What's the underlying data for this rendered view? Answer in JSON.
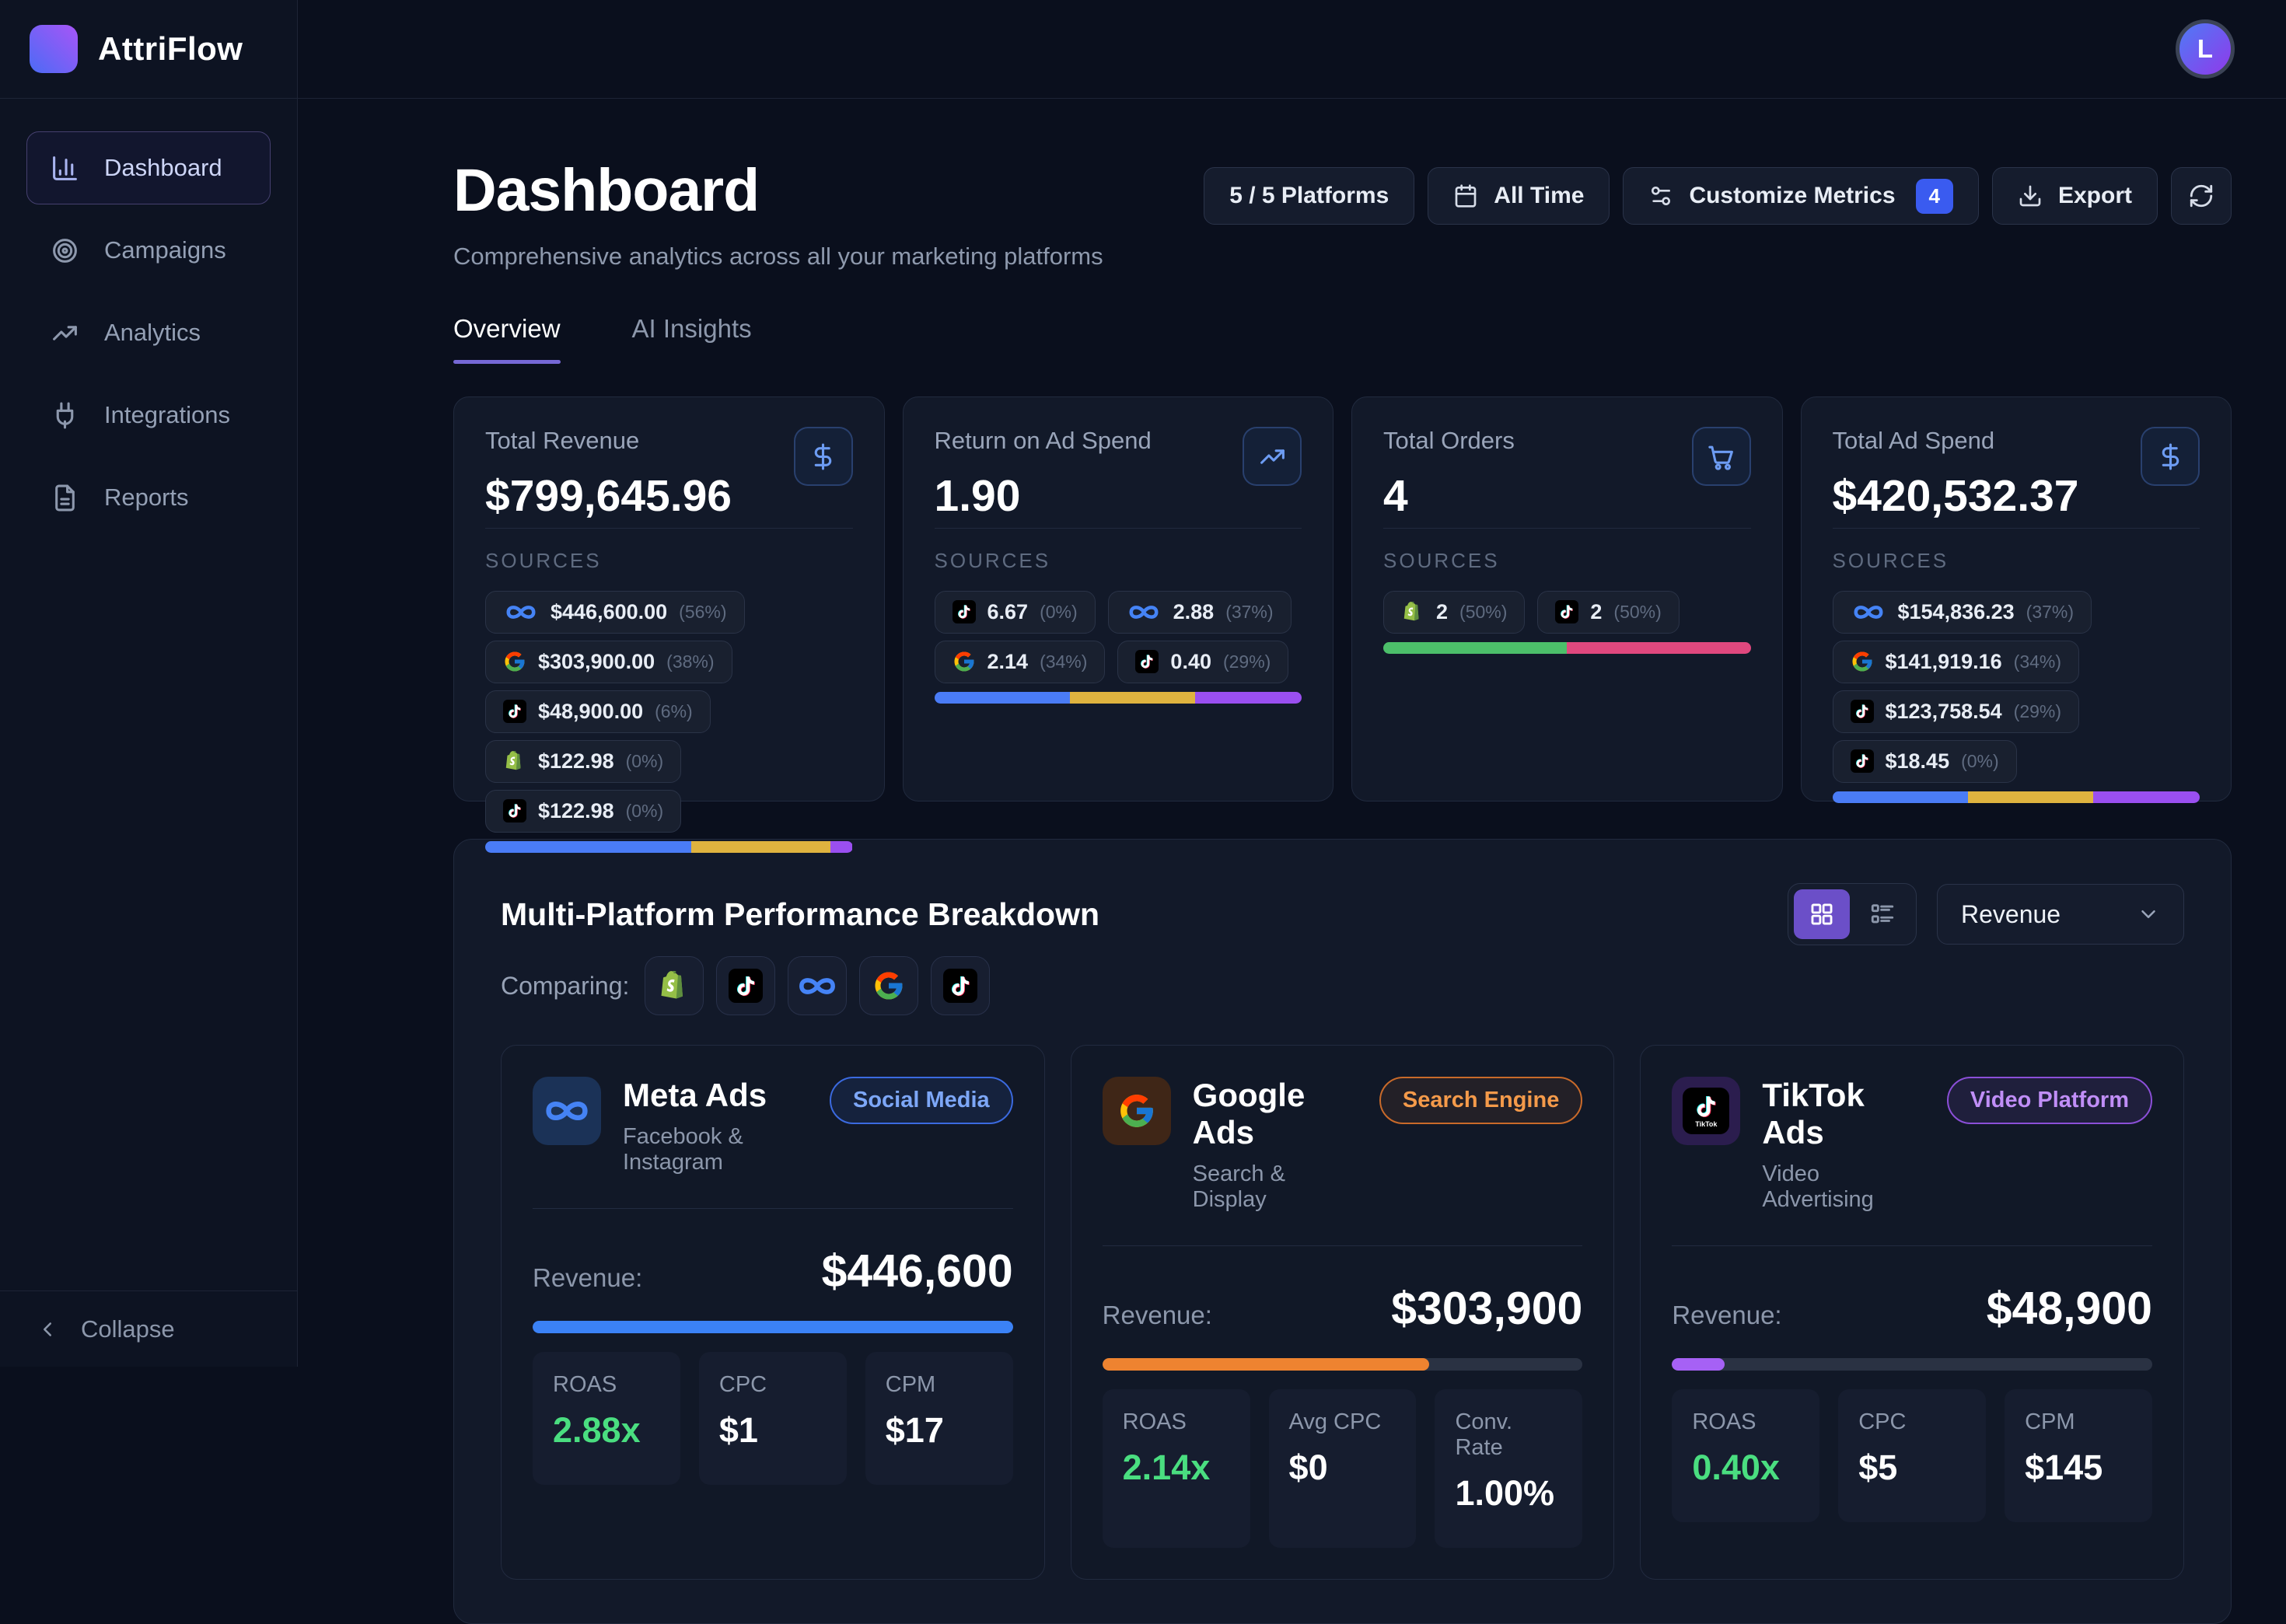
{
  "brand": {
    "name": "AttriFlow",
    "avatar_initial": "L"
  },
  "labels": {
    "sources": "SOURCES",
    "revenue": "Revenue:"
  },
  "sidebar": {
    "items": [
      {
        "label": "Dashboard",
        "icon": "bar-chart-icon",
        "active": true
      },
      {
        "label": "Campaigns",
        "icon": "target-icon",
        "active": false
      },
      {
        "label": "Analytics",
        "icon": "trending-up-icon",
        "active": false
      },
      {
        "label": "Integrations",
        "icon": "plug-icon",
        "active": false
      },
      {
        "label": "Reports",
        "icon": "file-text-icon",
        "active": false
      }
    ],
    "collapse_label": "Collapse"
  },
  "header": {
    "title": "Dashboard",
    "subtitle": "Comprehensive analytics across all your marketing platforms",
    "toolbar": {
      "platforms_label": "5 / 5 Platforms",
      "time_label": "All Time",
      "customize_label": "Customize Metrics",
      "customize_count": "4",
      "export_label": "Export"
    },
    "tabs": [
      {
        "label": "Overview",
        "active": true
      },
      {
        "label": "AI Insights",
        "active": false
      }
    ]
  },
  "stat_cards": [
    {
      "title": "Total Revenue",
      "value": "$799,645.96",
      "icon": "dollar-icon",
      "sources": [
        {
          "platform": "meta",
          "value": "$446,600.00",
          "pct": "(56%)"
        },
        {
          "platform": "google",
          "value": "$303,900.00",
          "pct": "(38%)"
        },
        {
          "platform": "tiktok",
          "value": "$48,900.00",
          "pct": "(6%)"
        },
        {
          "platform": "shopify",
          "value": "$122.98",
          "pct": "(0%)"
        },
        {
          "platform": "tiktok",
          "value": "$122.98",
          "pct": "(0%)"
        }
      ],
      "bar": [
        {
          "color": "#4a7cf6",
          "pct": 56
        },
        {
          "color": "#dfb33f",
          "pct": 38
        },
        {
          "color": "#9a4ff0",
          "pct": 6
        }
      ]
    },
    {
      "title": "Return on Ad Spend",
      "value": "1.90",
      "icon": "trending-up-icon",
      "sources": [
        {
          "platform": "tiktok",
          "value": "6.67",
          "pct": "(0%)"
        },
        {
          "platform": "meta",
          "value": "2.88",
          "pct": "(37%)"
        },
        {
          "platform": "google",
          "value": "2.14",
          "pct": "(34%)"
        },
        {
          "platform": "tiktok",
          "value": "0.40",
          "pct": "(29%)"
        }
      ],
      "bar": [
        {
          "color": "#4a7cf6",
          "pct": 37
        },
        {
          "color": "#dfb33f",
          "pct": 34
        },
        {
          "color": "#9a4ff0",
          "pct": 29
        }
      ]
    },
    {
      "title": "Total Orders",
      "value": "4",
      "icon": "cart-icon",
      "sources": [
        {
          "platform": "shopify",
          "value": "2",
          "pct": "(50%)"
        },
        {
          "platform": "tiktok",
          "value": "2",
          "pct": "(50%)"
        }
      ],
      "bar": [
        {
          "color": "#4cbf6a",
          "pct": 50
        },
        {
          "color": "#e0487e",
          "pct": 50
        }
      ]
    },
    {
      "title": "Total Ad Spend",
      "value": "$420,532.37",
      "icon": "dollar-icon",
      "sources": [
        {
          "platform": "meta",
          "value": "$154,836.23",
          "pct": "(37%)"
        },
        {
          "platform": "google",
          "value": "$141,919.16",
          "pct": "(34%)"
        },
        {
          "platform": "tiktok",
          "value": "$123,758.54",
          "pct": "(29%)"
        },
        {
          "platform": "tiktok",
          "value": "$18.45",
          "pct": "(0%)"
        }
      ],
      "bar": [
        {
          "color": "#4a7cf6",
          "pct": 37
        },
        {
          "color": "#dfb33f",
          "pct": 34
        },
        {
          "color": "#9a4ff0",
          "pct": 29
        }
      ]
    }
  ],
  "breakdown": {
    "title": "Multi-Platform Performance Breakdown",
    "comparing_label": "Comparing:",
    "comparing_platforms": [
      "shopify",
      "tiktok",
      "meta",
      "google",
      "tiktok"
    ],
    "metric_dropdown": "Revenue",
    "platform_cards": [
      {
        "name": "Meta Ads",
        "subtitle": "Facebook & Instagram",
        "platform": "meta",
        "badge": "Social Media",
        "badge_color": "blue",
        "revenue": "$446,600",
        "bar_pct": 100,
        "bar_color": "#3b82f6",
        "stats": [
          {
            "label": "ROAS",
            "value": "2.88x",
            "color": "green"
          },
          {
            "label": "CPC",
            "value": "$1",
            "color": "white"
          },
          {
            "label": "CPM",
            "value": "$17",
            "color": "white"
          }
        ]
      },
      {
        "name": "Google Ads",
        "subtitle": "Search & Display",
        "platform": "google",
        "badge": "Search Engine",
        "badge_color": "orange",
        "revenue": "$303,900",
        "bar_pct": 68,
        "bar_color": "#ee8330",
        "stats": [
          {
            "label": "ROAS",
            "value": "2.14x",
            "color": "green"
          },
          {
            "label": "Avg CPC",
            "value": "$0",
            "color": "white"
          },
          {
            "label": "Conv. Rate",
            "value": "1.00%",
            "color": "white"
          }
        ]
      },
      {
        "name": "TikTok Ads",
        "subtitle": "Video Advertising",
        "platform": "tiktok",
        "badge": "Video Platform",
        "badge_color": "purple",
        "revenue": "$48,900",
        "bar_pct": 11,
        "bar_color": "#a661f5",
        "stats": [
          {
            "label": "ROAS",
            "value": "0.40x",
            "color": "green"
          },
          {
            "label": "CPC",
            "value": "$5",
            "color": "white"
          },
          {
            "label": "CPM",
            "value": "$145",
            "color": "white"
          }
        ]
      }
    ]
  }
}
